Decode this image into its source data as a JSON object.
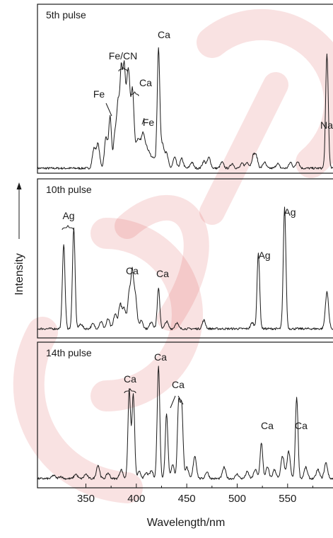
{
  "chart_data": {
    "type": "line",
    "xlabel": "Wavelength/nm",
    "ylabel": "Intensity",
    "xlim": [
      302,
      595
    ],
    "xticks": [
      "350",
      "400",
      "450",
      "500",
      "550"
    ],
    "panels": [
      {
        "label": "5th pulse",
        "peaks": [
          [
            358,
            0.16
          ],
          [
            362,
            0.2
          ],
          [
            370,
            0.26
          ],
          [
            374,
            0.42
          ],
          [
            379,
            0.3
          ],
          [
            382,
            0.48
          ],
          [
            385,
            0.78
          ],
          [
            388,
            0.8
          ],
          [
            391,
            0.55
          ],
          [
            393,
            0.56
          ],
          [
            396,
            0.42
          ],
          [
            397,
            0.26
          ],
          [
            401,
            0.2
          ],
          [
            404,
            0.16
          ],
          [
            407,
            0.25
          ],
          [
            410,
            0.13
          ],
          [
            413,
            0.11
          ],
          [
            417,
            0.09
          ],
          [
            422,
            1.0
          ],
          [
            426,
            0.2
          ],
          [
            430,
            0.12
          ],
          [
            438,
            0.09
          ],
          [
            445,
            0.08
          ],
          [
            455,
            0.05
          ],
          [
            467,
            0.06
          ],
          [
            472,
            0.09
          ],
          [
            485,
            0.05
          ],
          [
            495,
            0.04
          ],
          [
            505,
            0.04
          ],
          [
            510,
            0.05
          ],
          [
            516,
            0.1
          ],
          [
            519,
            0.09
          ],
          [
            527,
            0.05
          ],
          [
            540,
            0.04
          ],
          [
            553,
            0.05
          ],
          [
            560,
            0.06
          ],
          [
            589,
            0.95
          ]
        ],
        "annotations": [
          {
            "text": "Fe/CN",
            "x": 387
          },
          {
            "text": "Ca",
            "x": 422
          },
          {
            "text": "Fe",
            "x": 374
          },
          {
            "text": "Ca",
            "x": 395
          },
          {
            "text": "Fe",
            "x": 407
          },
          {
            "text": "Na",
            "x": 589
          }
        ]
      },
      {
        "label": "10th pulse",
        "peaks": [
          [
            328,
            0.7
          ],
          [
            338,
            0.82
          ],
          [
            345,
            0.04
          ],
          [
            357,
            0.04
          ],
          [
            365,
            0.06
          ],
          [
            372,
            0.08
          ],
          [
            379,
            0.12
          ],
          [
            384,
            0.2
          ],
          [
            388,
            0.16
          ],
          [
            393,
            0.3
          ],
          [
            396,
            0.4
          ],
          [
            399,
            0.28
          ],
          [
            405,
            0.07
          ],
          [
            415,
            0.06
          ],
          [
            422,
            0.33
          ],
          [
            430,
            0.06
          ],
          [
            440,
            0.05
          ],
          [
            467,
            0.07
          ],
          [
            515,
            0.05
          ],
          [
            521,
            0.62
          ],
          [
            547,
            1.0
          ],
          [
            589,
            0.3
          ]
        ],
        "annotations": [
          {
            "text": "Ag",
            "x": 333
          },
          {
            "text": "Ca",
            "x": 394
          },
          {
            "text": "Ca",
            "x": 422
          },
          {
            "text": "Ag",
            "x": 521
          },
          {
            "text": "Ag",
            "x": 547
          }
        ]
      },
      {
        "label": "14th pulse",
        "peaks": [
          [
            318,
            0.03
          ],
          [
            325,
            0.02
          ],
          [
            340,
            0.04
          ],
          [
            350,
            0.04
          ],
          [
            362,
            0.12
          ],
          [
            372,
            0.05
          ],
          [
            385,
            0.08
          ],
          [
            393,
            0.78
          ],
          [
            397,
            0.74
          ],
          [
            403,
            0.06
          ],
          [
            410,
            0.05
          ],
          [
            415,
            0.07
          ],
          [
            422,
            1.0
          ],
          [
            430,
            0.58
          ],
          [
            436,
            0.12
          ],
          [
            442,
            0.66
          ],
          [
            445,
            0.64
          ],
          [
            450,
            0.1
          ],
          [
            458,
            0.2
          ],
          [
            470,
            0.06
          ],
          [
            487,
            0.1
          ],
          [
            500,
            0.04
          ],
          [
            510,
            0.06
          ],
          [
            518,
            0.08
          ],
          [
            524,
            0.32
          ],
          [
            530,
            0.1
          ],
          [
            537,
            0.08
          ],
          [
            545,
            0.2
          ],
          [
            551,
            0.24
          ],
          [
            559,
            0.72
          ],
          [
            568,
            0.1
          ],
          [
            580,
            0.08
          ],
          [
            588,
            0.14
          ]
        ],
        "annotations": [
          {
            "text": "Ca",
            "x": 395
          },
          {
            "text": "Ca",
            "x": 422
          },
          {
            "text": "Ca",
            "x": 443
          },
          {
            "text": "Ca",
            "x": 524
          },
          {
            "text": "Ca",
            "x": 559
          }
        ]
      }
    ],
    "grid": false,
    "legend": "none"
  }
}
